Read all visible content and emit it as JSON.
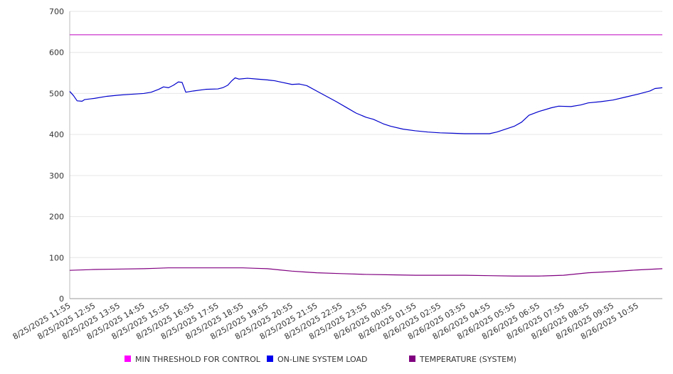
{
  "chart_data": {
    "type": "line",
    "ylim": [
      0,
      700
    ],
    "y_ticks": [
      0,
      100,
      200,
      300,
      400,
      500,
      600,
      700
    ],
    "grid": true,
    "legend_position": "bottom",
    "x_labels": [
      "8/25/2025 11:55",
      "8/25/2025 12:55",
      "8/25/2025 13:55",
      "8/25/2025 14:55",
      "8/25/2025 15:55",
      "8/25/2025 16:55",
      "8/25/2025 17:55",
      "8/25/2025 18:55",
      "8/25/2025 19:55",
      "8/25/2025 20:55",
      "8/25/2025 21:55",
      "8/25/2025 22:55",
      "8/25/2025 23:55",
      "8/26/2025 00:55",
      "8/26/2025 01:55",
      "8/26/2025 02:55",
      "8/26/2025 03:55",
      "8/26/2025 04:55",
      "8/26/2025 05:55",
      "8/26/2025 06:55",
      "8/26/2025 07:55",
      "8/26/2025 08:55",
      "8/26/2025 09:55",
      "8/26/2025 10:55"
    ],
    "x_hours_start": 0,
    "x_hours_end": 24,
    "series": [
      {
        "name": "MIN THRESHOLD FOR CONTROL",
        "color": "#cc33cc",
        "legend_color": "#ff00ff",
        "points": [
          [
            0,
            643
          ],
          [
            24,
            643
          ]
        ]
      },
      {
        "name": "ON-LINE SYSTEM LOAD",
        "color": "#0000cc",
        "legend_color": "#0000ee",
        "points": [
          [
            0,
            505
          ],
          [
            0.15,
            495
          ],
          [
            0.3,
            482
          ],
          [
            0.5,
            481
          ],
          [
            0.6,
            485
          ],
          [
            1.0,
            488
          ],
          [
            1.5,
            493
          ],
          [
            2.0,
            496
          ],
          [
            2.5,
            498
          ],
          [
            3.0,
            500
          ],
          [
            3.3,
            503
          ],
          [
            3.6,
            510
          ],
          [
            3.8,
            516
          ],
          [
            4.0,
            514
          ],
          [
            4.2,
            520
          ],
          [
            4.4,
            528
          ],
          [
            4.55,
            527
          ],
          [
            4.7,
            503
          ],
          [
            5.0,
            506
          ],
          [
            5.5,
            510
          ],
          [
            6.0,
            511
          ],
          [
            6.2,
            514
          ],
          [
            6.4,
            520
          ],
          [
            6.55,
            530
          ],
          [
            6.7,
            538
          ],
          [
            6.85,
            535
          ],
          [
            7.2,
            537
          ],
          [
            7.6,
            535
          ],
          [
            8.0,
            533
          ],
          [
            8.3,
            531
          ],
          [
            8.6,
            527
          ],
          [
            9.0,
            522
          ],
          [
            9.3,
            523
          ],
          [
            9.6,
            519
          ],
          [
            10.0,
            506
          ],
          [
            10.4,
            493
          ],
          [
            10.8,
            480
          ],
          [
            11.2,
            466
          ],
          [
            11.6,
            452
          ],
          [
            12.0,
            442
          ],
          [
            12.3,
            437
          ],
          [
            12.7,
            426
          ],
          [
            13.0,
            420
          ],
          [
            13.5,
            413
          ],
          [
            14.0,
            409
          ],
          [
            14.5,
            406
          ],
          [
            15.0,
            404
          ],
          [
            15.5,
            403
          ],
          [
            16.0,
            402
          ],
          [
            16.5,
            402
          ],
          [
            17.0,
            402
          ],
          [
            17.3,
            406
          ],
          [
            17.7,
            414
          ],
          [
            18.0,
            420
          ],
          [
            18.3,
            430
          ],
          [
            18.6,
            447
          ],
          [
            19.0,
            456
          ],
          [
            19.5,
            465
          ],
          [
            19.8,
            469
          ],
          [
            20.3,
            468
          ],
          [
            20.7,
            472
          ],
          [
            21.0,
            477
          ],
          [
            21.5,
            480
          ],
          [
            22.0,
            484
          ],
          [
            22.5,
            491
          ],
          [
            23.0,
            498
          ],
          [
            23.5,
            506
          ],
          [
            23.7,
            512
          ],
          [
            24.0,
            514
          ]
        ]
      },
      {
        "name": "TEMPERATURE (SYSTEM)",
        "color": "#800080",
        "legend_color": "#800080",
        "points": [
          [
            0,
            69
          ],
          [
            1,
            71
          ],
          [
            2,
            72
          ],
          [
            3,
            73
          ],
          [
            3.5,
            74
          ],
          [
            4,
            75
          ],
          [
            5,
            75
          ],
          [
            6,
            75
          ],
          [
            7,
            75
          ],
          [
            7.5,
            74
          ],
          [
            8,
            73
          ],
          [
            8.5,
            70
          ],
          [
            9,
            67
          ],
          [
            9.5,
            65
          ],
          [
            10,
            63
          ],
          [
            11,
            61
          ],
          [
            12,
            59
          ],
          [
            13,
            58
          ],
          [
            14,
            57
          ],
          [
            15,
            57
          ],
          [
            16,
            57
          ],
          [
            17,
            56
          ],
          [
            18,
            55
          ],
          [
            19,
            55
          ],
          [
            20,
            57
          ],
          [
            20.5,
            60
          ],
          [
            21,
            63
          ],
          [
            22,
            66
          ],
          [
            23,
            70
          ],
          [
            24,
            73
          ]
        ]
      }
    ]
  }
}
